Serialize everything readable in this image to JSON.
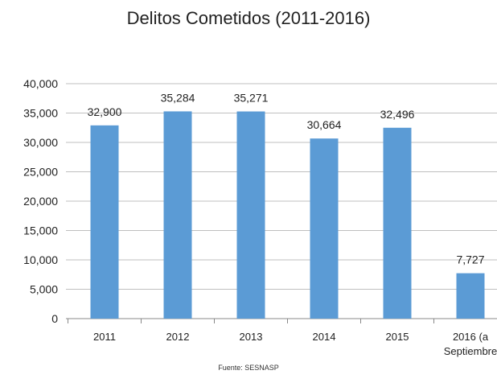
{
  "chart_data": {
    "type": "bar",
    "title": "Delitos Cometidos (2011-2016)",
    "categories": [
      "2011",
      "2012",
      "2013",
      "2014",
      "2015",
      "2016 (a Septiembre"
    ],
    "category_lines": [
      [
        "2011"
      ],
      [
        "2012"
      ],
      [
        "2013"
      ],
      [
        "2014"
      ],
      [
        "2015"
      ],
      [
        "2016 (a",
        "Septiembre"
      ]
    ],
    "values": [
      32900,
      35284,
      35271,
      30664,
      32496,
      7727
    ],
    "data_labels": [
      "32,900",
      "35,284",
      "35,271",
      "30,664",
      "32,496",
      "7,727"
    ],
    "ylim": [
      0,
      40000
    ],
    "yticks": [
      0,
      5000,
      10000,
      15000,
      20000,
      25000,
      30000,
      35000,
      40000
    ],
    "ytick_labels": [
      "0",
      "5,000",
      "10,000",
      "15,000",
      "20,000",
      "25,000",
      "30,000",
      "35,000",
      "40,000"
    ],
    "grid": true,
    "legend": "none",
    "source": "Fuente: SESNASP",
    "colors": {
      "bar": "#5b9bd5",
      "grid": "#bfbfbf",
      "axis": "#888888"
    }
  }
}
